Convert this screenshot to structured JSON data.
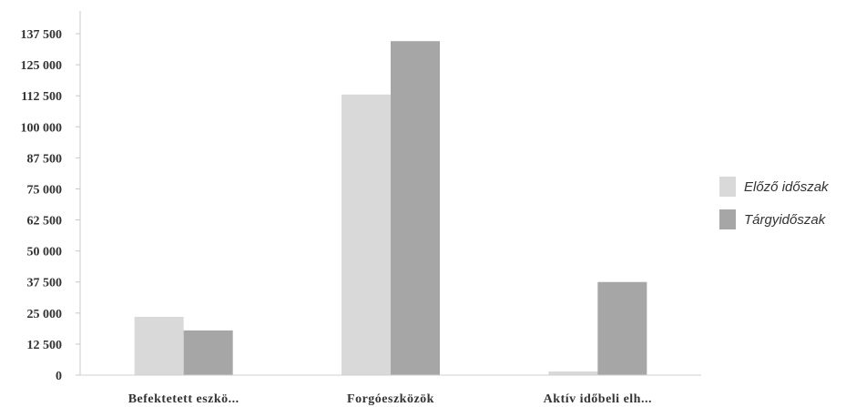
{
  "chart_data": {
    "type": "bar",
    "title": "",
    "xlabel": "",
    "ylabel": "",
    "categories": [
      "Befektetett eszkö...",
      "Forgóeszközök",
      "Aktív időbeli elh..."
    ],
    "series": [
      {
        "name": "Előző időszak",
        "values": [
          23500,
          113000,
          1500
        ],
        "color": "#d9d9d9"
      },
      {
        "name": "Tárgyidőszak",
        "values": [
          18000,
          134500,
          37500
        ],
        "color": "#a6a6a6"
      }
    ],
    "ylim": [
      0,
      137500
    ],
    "yticks": [
      0,
      12500,
      25000,
      37500,
      50000,
      62500,
      75000,
      87500,
      100000,
      112500,
      125000,
      137500
    ],
    "ytick_labels": [
      "0",
      "12 500",
      "25 000",
      "37 500",
      "50 000",
      "62 500",
      "75 000",
      "87 500",
      "100 000",
      "112 500",
      "125 000",
      "137 500"
    ],
    "grid": false,
    "legend_position": "right"
  }
}
